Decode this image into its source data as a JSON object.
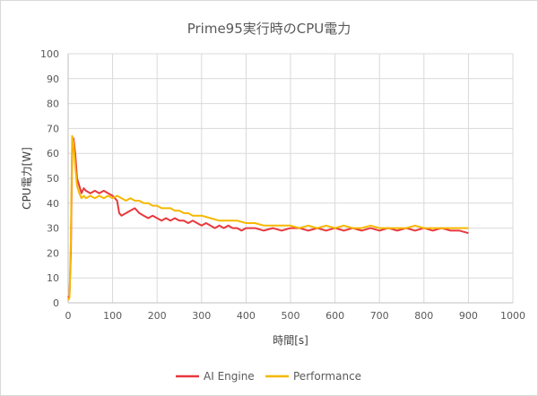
{
  "chart_data": {
    "type": "line",
    "title": "Prime95実行時のCPU電力",
    "xlabel": "時間[s]",
    "ylabel": "CPU電力[W]",
    "xlim": [
      0,
      1000
    ],
    "ylim": [
      0,
      100
    ],
    "xticks": [
      0,
      100,
      200,
      300,
      400,
      500,
      600,
      700,
      800,
      900,
      1000
    ],
    "yticks": [
      0,
      10,
      20,
      30,
      40,
      50,
      60,
      70,
      80,
      90,
      100
    ],
    "grid": true,
    "legend_position": "bottom",
    "series": [
      {
        "name": "AI Engine",
        "color": "#e8383d",
        "x": [
          0,
          3,
          6,
          9,
          12,
          16,
          20,
          25,
          30,
          35,
          40,
          50,
          60,
          70,
          80,
          90,
          100,
          110,
          115,
          120,
          130,
          140,
          150,
          160,
          170,
          180,
          190,
          200,
          210,
          220,
          230,
          240,
          250,
          260,
          270,
          280,
          290,
          300,
          310,
          320,
          330,
          340,
          350,
          360,
          370,
          380,
          390,
          400,
          420,
          440,
          460,
          480,
          500,
          520,
          540,
          560,
          580,
          600,
          620,
          640,
          660,
          680,
          700,
          720,
          740,
          760,
          780,
          800,
          820,
          840,
          860,
          880,
          900
        ],
        "y": [
          2,
          3,
          20,
          62,
          66,
          60,
          50,
          47,
          44,
          46,
          45,
          44,
          45,
          44,
          45,
          44,
          43,
          41,
          36,
          35,
          36,
          37,
          38,
          36,
          35,
          34,
          35,
          34,
          33,
          34,
          33,
          34,
          33,
          33,
          32,
          33,
          32,
          31,
          32,
          31,
          30,
          31,
          30,
          31,
          30,
          30,
          29,
          30,
          30,
          29,
          30,
          29,
          30,
          30,
          29,
          30,
          29,
          30,
          29,
          30,
          29,
          30,
          29,
          30,
          29,
          30,
          29,
          30,
          29,
          30,
          29,
          29,
          28
        ]
      },
      {
        "name": "Performance",
        "color": "#f5b800",
        "x": [
          0,
          3,
          6,
          9,
          12,
          16,
          20,
          25,
          30,
          35,
          40,
          50,
          60,
          70,
          80,
          90,
          100,
          110,
          120,
          130,
          140,
          150,
          160,
          170,
          180,
          190,
          200,
          210,
          220,
          230,
          240,
          250,
          260,
          270,
          280,
          290,
          300,
          320,
          340,
          360,
          380,
          400,
          420,
          440,
          460,
          480,
          500,
          520,
          540,
          560,
          580,
          600,
          620,
          640,
          660,
          680,
          700,
          720,
          740,
          760,
          780,
          800,
          820,
          840,
          860,
          880,
          900
        ],
        "y": [
          1,
          2,
          25,
          67,
          64,
          55,
          47,
          44,
          42,
          43,
          42,
          43,
          42,
          43,
          42,
          43,
          42,
          43,
          42,
          41,
          42,
          41,
          41,
          40,
          40,
          39,
          39,
          38,
          38,
          38,
          37,
          37,
          36,
          36,
          35,
          35,
          35,
          34,
          33,
          33,
          33,
          32,
          32,
          31,
          31,
          31,
          31,
          30,
          31,
          30,
          31,
          30,
          31,
          30,
          30,
          31,
          30,
          30,
          30,
          30,
          31,
          30,
          30,
          30,
          30,
          30,
          30
        ]
      }
    ]
  }
}
